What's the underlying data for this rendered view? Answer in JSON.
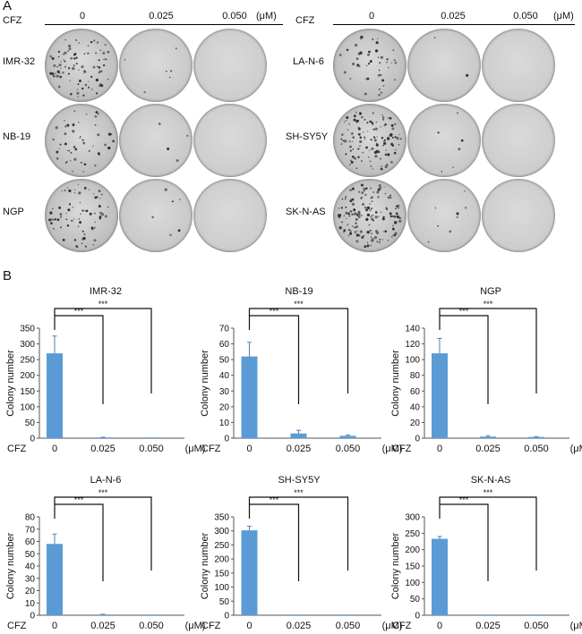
{
  "panel_a": {
    "letter": "A",
    "groups": [
      {
        "agent": "CFZ",
        "doses": [
          "0",
          "0.025",
          "0.050"
        ],
        "unit": "(μM)",
        "rows": [
          "IMR-32",
          "NB-19",
          "NGP"
        ]
      },
      {
        "agent": "CFZ",
        "doses": [
          "0",
          "0.025",
          "0.050"
        ],
        "unit": "(μM)",
        "rows": [
          "LA-N-6",
          "SH-SY5Y",
          "SK-N-AS"
        ]
      }
    ]
  },
  "panel_b": {
    "letter": "B"
  },
  "chart_data": [
    {
      "type": "bar",
      "title": "IMR-32",
      "ylabel": "Colony number",
      "xprefix": "CFZ",
      "xunit": "(μM)",
      "categories": [
        "0",
        "0.025",
        "0.050"
      ],
      "values": [
        270,
        2,
        1
      ],
      "errors": [
        55,
        1,
        0
      ],
      "ylim": [
        0,
        350
      ],
      "yticks": [
        0,
        50,
        100,
        150,
        200,
        250,
        300,
        350
      ],
      "significance": [
        "***",
        "***"
      ],
      "bar_color": "#5b9bd5"
    },
    {
      "type": "bar",
      "title": "NB-19",
      "ylabel": "Colony number",
      "xprefix": "CFZ",
      "xunit": "(μM)",
      "categories": [
        "0",
        "0.025",
        "0.050"
      ],
      "values": [
        52,
        3,
        1.5
      ],
      "errors": [
        9,
        2,
        0.5
      ],
      "ylim": [
        0,
        70
      ],
      "yticks": [
        0,
        10,
        20,
        30,
        40,
        50,
        60,
        70
      ],
      "significance": [
        "***",
        "***"
      ],
      "bar_color": "#5b9bd5"
    },
    {
      "type": "bar",
      "title": "NGP",
      "ylabel": "Colony number",
      "xprefix": "CFZ",
      "xunit": "(μM)",
      "categories": [
        "0",
        "0.025",
        "0.050"
      ],
      "values": [
        108,
        2,
        1.5
      ],
      "errors": [
        19,
        1,
        0.5
      ],
      "ylim": [
        0,
        140
      ],
      "yticks": [
        0,
        20,
        40,
        60,
        80,
        100,
        120,
        140
      ],
      "significance": [
        "***",
        "***"
      ],
      "bar_color": "#5b9bd5"
    },
    {
      "type": "bar",
      "title": "LA-N-6",
      "ylabel": "Colony number",
      "xprefix": "CFZ",
      "xunit": "(μM)",
      "categories": [
        "0",
        "0.025",
        "0.050"
      ],
      "values": [
        58,
        0.5,
        0
      ],
      "errors": [
        8,
        0.3,
        0
      ],
      "ylim": [
        0,
        80
      ],
      "yticks": [
        0,
        10,
        20,
        30,
        40,
        50,
        60,
        70,
        80
      ],
      "significance": [
        "***",
        "***"
      ],
      "bar_color": "#5b9bd5"
    },
    {
      "type": "bar",
      "title": "SH-SY5Y",
      "ylabel": "Colony number",
      "xprefix": "CFZ",
      "xunit": "(μM)",
      "categories": [
        "0",
        "0.025",
        "0.050"
      ],
      "values": [
        302,
        1,
        0
      ],
      "errors": [
        15,
        0,
        0
      ],
      "ylim": [
        0,
        350
      ],
      "yticks": [
        0,
        50,
        100,
        150,
        200,
        250,
        300,
        350
      ],
      "significance": [
        "***",
        "***"
      ],
      "bar_color": "#5b9bd5"
    },
    {
      "type": "bar",
      "title": "SK-N-AS",
      "ylabel": "Colony number",
      "xprefix": "CFZ",
      "xunit": "(μM)",
      "categories": [
        "0",
        "0.025",
        "0.050"
      ],
      "values": [
        233,
        1,
        1
      ],
      "errors": [
        7,
        0,
        0
      ],
      "ylim": [
        0,
        300
      ],
      "yticks": [
        0,
        50,
        100,
        150,
        200,
        250,
        300
      ],
      "significance": [
        "***",
        "***"
      ],
      "bar_color": "#5b9bd5"
    }
  ]
}
